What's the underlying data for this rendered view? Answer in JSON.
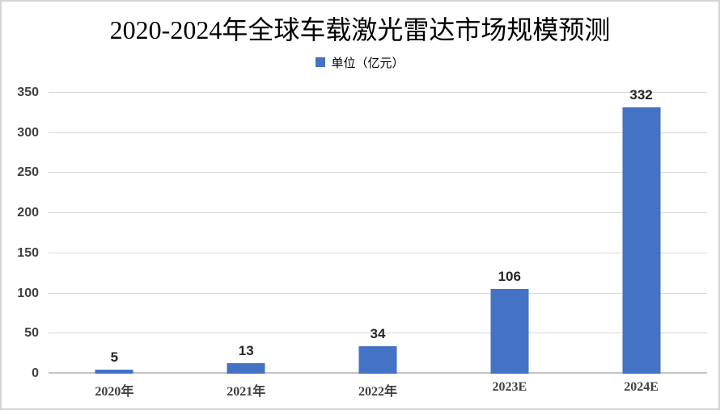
{
  "chart_data": {
    "type": "bar",
    "title": "2020-2024年全球车载激光雷达市场规模预测",
    "legend_label": "单位（亿元）",
    "legend_position": "top",
    "categories": [
      "2020年",
      "2021年",
      "2022年",
      "2023E",
      "2024E"
    ],
    "values": [
      5,
      13,
      34,
      106,
      332
    ],
    "xlabel": "",
    "ylabel": "",
    "ylim": [
      0,
      350
    ],
    "yticks": [
      0,
      50,
      100,
      150,
      200,
      250,
      300,
      350
    ],
    "grid": true,
    "bar_color": "#4472C4"
  },
  "colors": {
    "accent_blue": "#4472C4",
    "gridline": "#D7D7D7",
    "axis_line": "#C2C2C2",
    "tick_text": "#404040",
    "value_text": "#262626",
    "frame_border": "#D4D4D4"
  }
}
